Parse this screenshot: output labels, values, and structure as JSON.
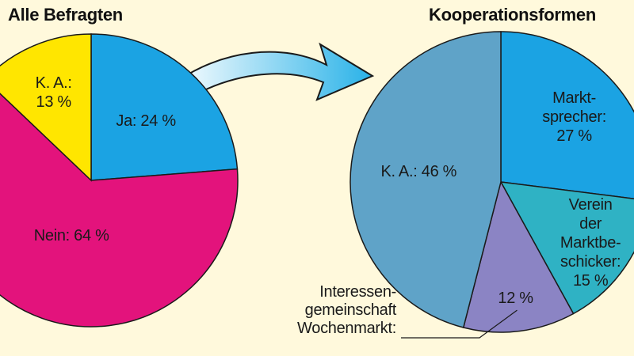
{
  "chart_data": [
    {
      "type": "pie",
      "title": "Alle Befragten",
      "slices": [
        {
          "label": "Ja: 24 %",
          "value": 24,
          "color": "#1ba3e3"
        },
        {
          "label": "Nein: 64 %",
          "value": 64,
          "color": "#e3137c"
        },
        {
          "label": "K. A.:\n13 %",
          "value": 13,
          "color": "#ffe600"
        }
      ]
    },
    {
      "type": "pie",
      "title": "Kooperationsformen",
      "slices": [
        {
          "label": "Markt-\nsprecher:\n27 %",
          "value": 27,
          "color": "#1ba3e3"
        },
        {
          "label": "Verein der\nMarktbe-\nschicker:\n15 %",
          "value": 15,
          "color": "#2fb2c4"
        },
        {
          "name": "Interessen-\ngemeinschaft\nWochenmarkt:",
          "label": "12 %",
          "value": 12,
          "color": "#8b84c4"
        },
        {
          "label": "K. A.: 46 %",
          "value": 46,
          "color": "#5fa3c8"
        }
      ]
    }
  ]
}
